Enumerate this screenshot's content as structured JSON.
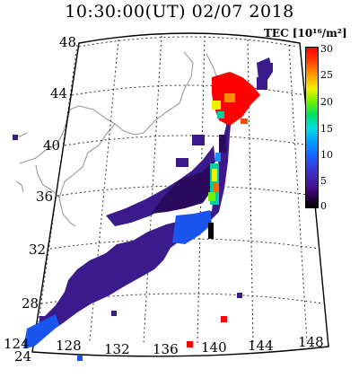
{
  "title": "10:30:00(UT)  02/07 2018",
  "colorbar": {
    "label": "TEC [10¹⁶/m²]",
    "ticks": [
      "30",
      "25",
      "20",
      "15",
      "10",
      "5",
      "0"
    ],
    "min": 0,
    "max": 30
  },
  "latitude_labels": [
    "48",
    "44",
    "40",
    "36",
    "32",
    "28",
    "24"
  ],
  "longitude_labels": [
    "124",
    "128",
    "132",
    "136",
    "140",
    "144",
    "148"
  ],
  "colors": {
    "land_outline": "#9a9a9a",
    "grid": "#333333",
    "tec_low": "#3b1a8c",
    "tec_mid": "#1a60ff",
    "tec_high": "#ff0000"
  }
}
